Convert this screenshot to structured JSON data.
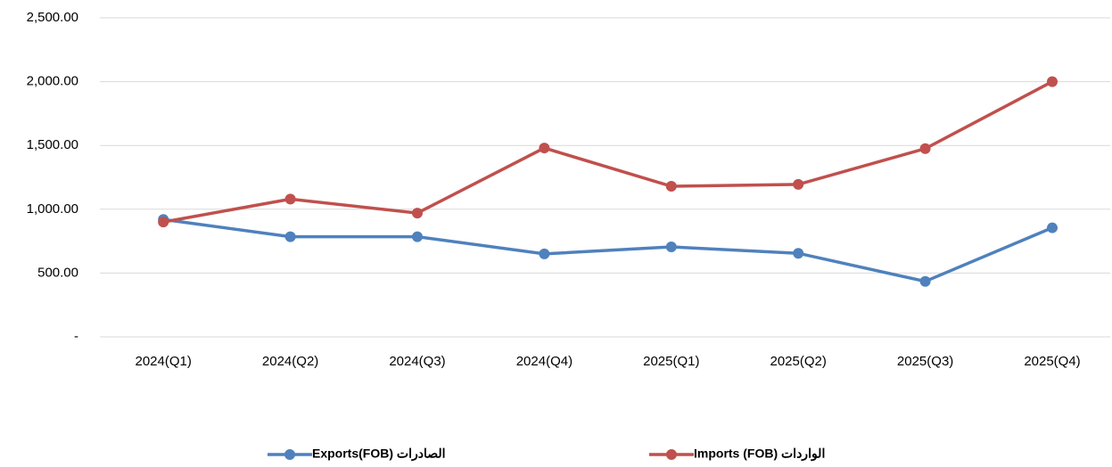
{
  "chart_data": {
    "type": "line",
    "categories": [
      "2024(Q1)",
      "2024(Q2)",
      "2024(Q3)",
      "2024(Q4)",
      "2025(Q1)",
      "2025(Q2)",
      "2025(Q3)",
      "2025(Q4)"
    ],
    "series": [
      {
        "name": "Exports(FOB)  الصادرات",
        "color": "#4f81bd",
        "values": [
          920,
          785,
          785,
          650,
          705,
          655,
          435,
          855
        ]
      },
      {
        "name": "Imports (FOB) الواردات",
        "color": "#c0504d",
        "values": [
          900,
          1080,
          970,
          1480,
          1180,
          1195,
          1475,
          2000
        ]
      }
    ],
    "ylim": [
      0,
      2500
    ],
    "yticks": [
      {
        "value": 0,
        "label": "-"
      },
      {
        "value": 500,
        "label": "500.00"
      },
      {
        "value": 1000,
        "label": "1,000.00"
      },
      {
        "value": 1500,
        "label": "1,500.00"
      },
      {
        "value": 2000,
        "label": "2,000.00"
      },
      {
        "value": 2500,
        "label": "2,500.00"
      }
    ],
    "grid": true,
    "legend": "bottom"
  }
}
